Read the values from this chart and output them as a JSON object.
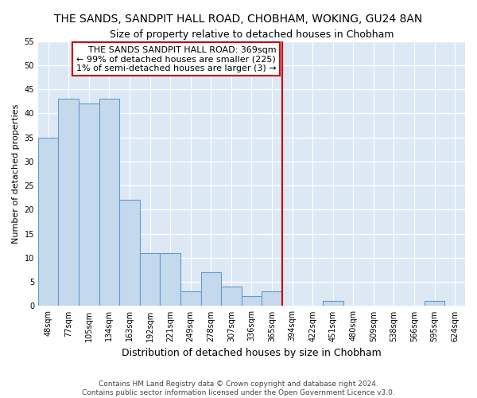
{
  "title": "THE SANDS, SANDPIT HALL ROAD, CHOBHAM, WOKING, GU24 8AN",
  "subtitle": "Size of property relative to detached houses in Chobham",
  "xlabel": "Distribution of detached houses by size in Chobham",
  "ylabel": "Number of detached properties",
  "categories": [
    "48sqm",
    "77sqm",
    "105sqm",
    "134sqm",
    "163sqm",
    "192sqm",
    "221sqm",
    "249sqm",
    "278sqm",
    "307sqm",
    "336sqm",
    "365sqm",
    "394sqm",
    "422sqm",
    "451sqm",
    "480sqm",
    "509sqm",
    "538sqm",
    "566sqm",
    "595sqm",
    "624sqm"
  ],
  "values": [
    35,
    43,
    42,
    43,
    22,
    11,
    11,
    3,
    7,
    4,
    2,
    3,
    0,
    0,
    1,
    0,
    0,
    0,
    0,
    1,
    0
  ],
  "bar_color": "#c5d9ed",
  "bar_edge_color": "#6699cc",
  "highlight_index": 11,
  "red_line_color": "#cc0000",
  "annotation_box_color": "#cc0000",
  "annotation_text": "THE SANDS SANDPIT HALL ROAD: 369sqm\n← 99% of detached houses are smaller (225)\n1% of semi-detached houses are larger (3) →",
  "ylim": [
    0,
    55
  ],
  "yticks": [
    0,
    5,
    10,
    15,
    20,
    25,
    30,
    35,
    40,
    45,
    50,
    55
  ],
  "background_color": "#dce9f5",
  "grid_color": "#ffffff",
  "footer_text": "Contains HM Land Registry data © Crown copyright and database right 2024.\nContains public sector information licensed under the Open Government Licence v3.0.",
  "title_fontsize": 10,
  "subtitle_fontsize": 9,
  "xlabel_fontsize": 9,
  "ylabel_fontsize": 8,
  "tick_fontsize": 7,
  "annotation_fontsize": 8,
  "footer_fontsize": 6.5
}
